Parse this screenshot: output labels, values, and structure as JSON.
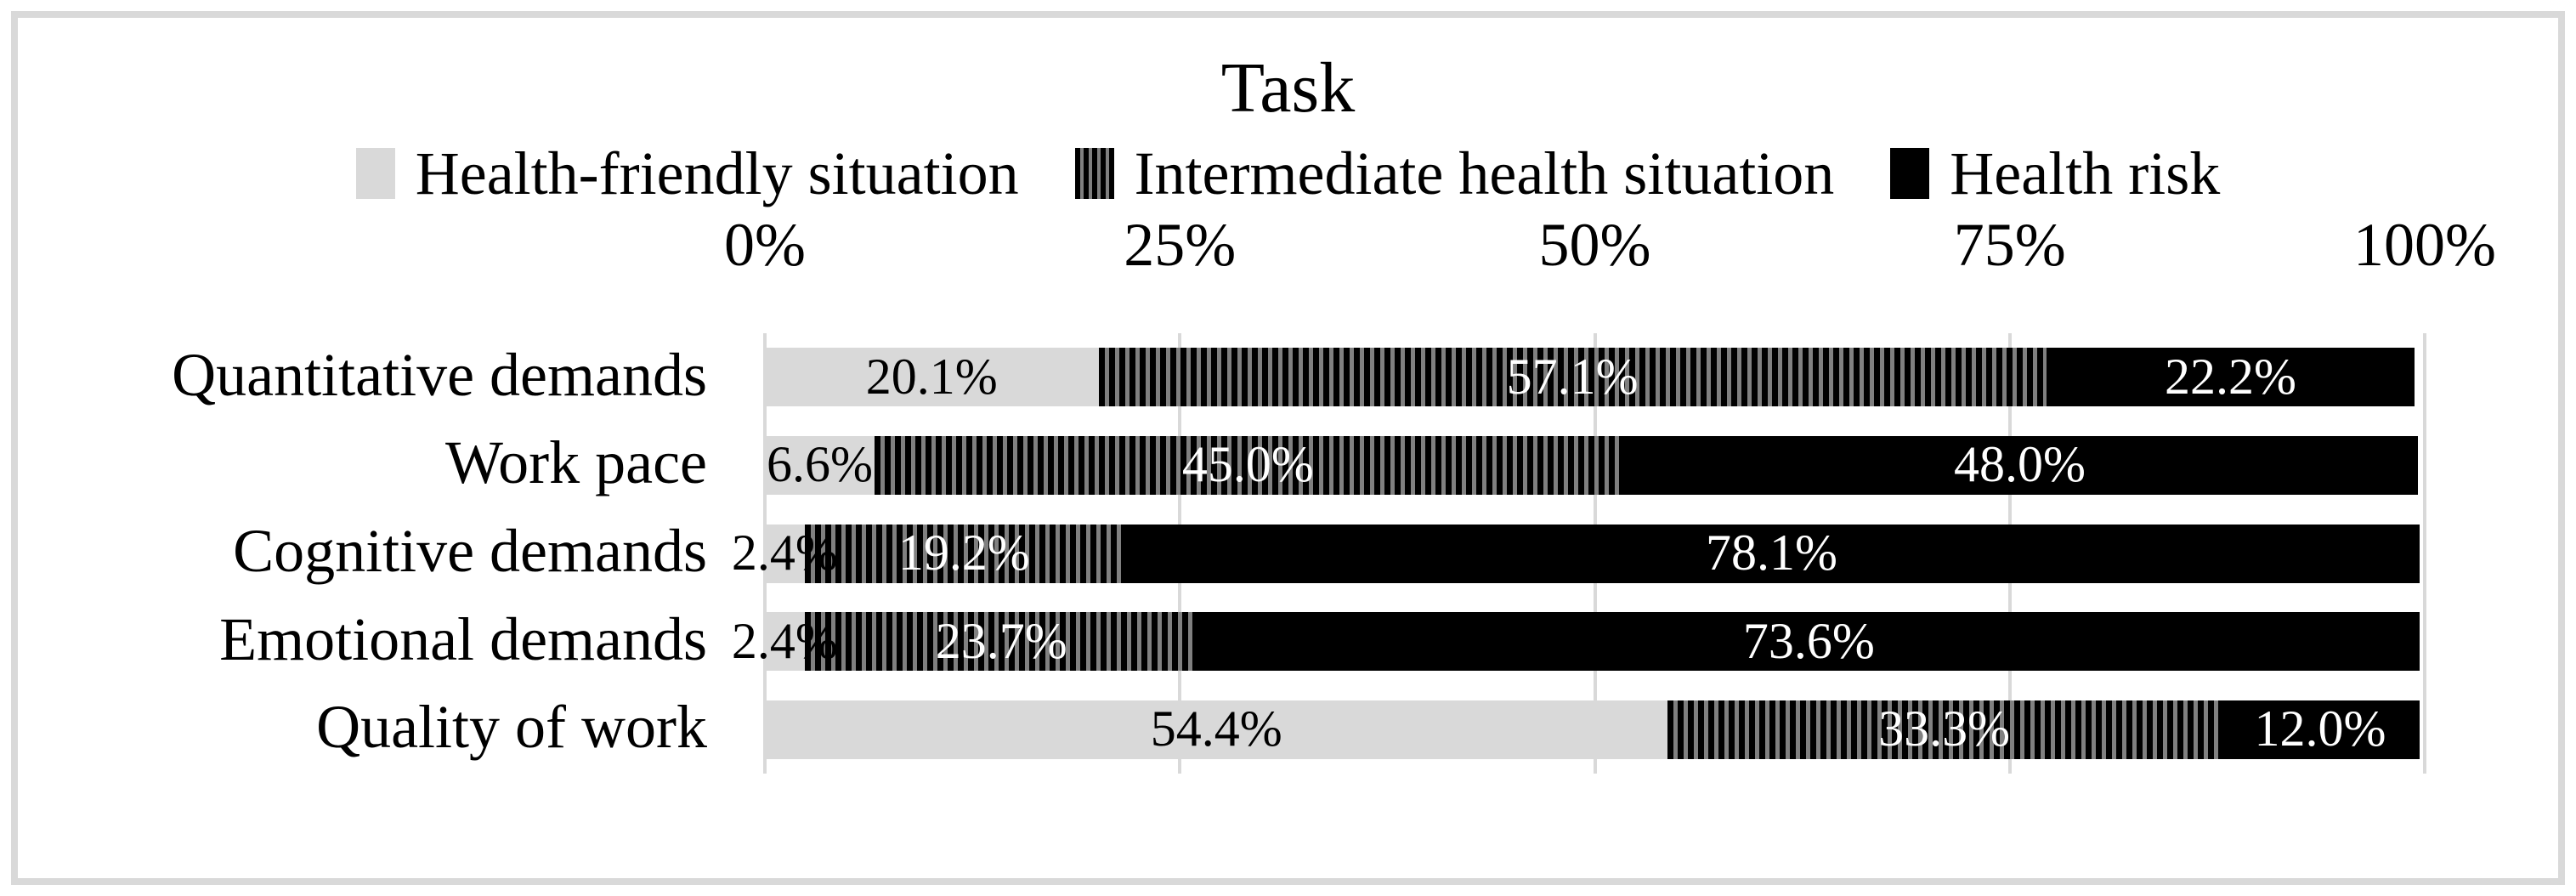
{
  "figure": {
    "border_color": "#d9d9d9"
  },
  "legend": [
    {
      "swatch": "gray",
      "label": "Health-friendly situation"
    },
    {
      "swatch": "striped",
      "label": "Intermediate health situation"
    },
    {
      "swatch": "black",
      "label": "Health risk"
    }
  ],
  "chart_data": {
    "type": "bar",
    "orientation": "horizontal",
    "stacked": true,
    "title": "Task",
    "categories": [
      "Quantitative demands",
      "Work pace",
      "Cognitive demands",
      "Emotional demands",
      "Quality of work"
    ],
    "series": [
      {
        "name": "Health-friendly situation",
        "style": "light-gray",
        "values": [
          20.1,
          6.6,
          2.4,
          2.4,
          54.4
        ]
      },
      {
        "name": "Intermediate health situation",
        "style": "striped",
        "values": [
          57.1,
          45.0,
          19.2,
          23.7,
          33.3
        ]
      },
      {
        "name": "Health risk",
        "style": "black",
        "values": [
          22.2,
          48.0,
          78.1,
          73.6,
          12.0
        ]
      }
    ],
    "value_label_format": "one-decimal-percent",
    "x_ticks": [
      {
        "label": "0%",
        "value": 0
      },
      {
        "label": "25%",
        "value": 25
      },
      {
        "label": "50%",
        "value": 50
      },
      {
        "label": "75%",
        "value": 75
      },
      {
        "label": "100%",
        "value": 100
      }
    ],
    "xlim": [
      0,
      100
    ],
    "grid": "vertical",
    "legend_position": "top"
  },
  "colors": {
    "segment_light_gray": "#d9d9d9",
    "segment_stripe_black": "#000000",
    "segment_stripe_gray": "#808080",
    "segment_black": "#000000",
    "gridline": "#d9d9d9",
    "label_on_light": "#000000",
    "label_on_dark": "#ffffff"
  }
}
